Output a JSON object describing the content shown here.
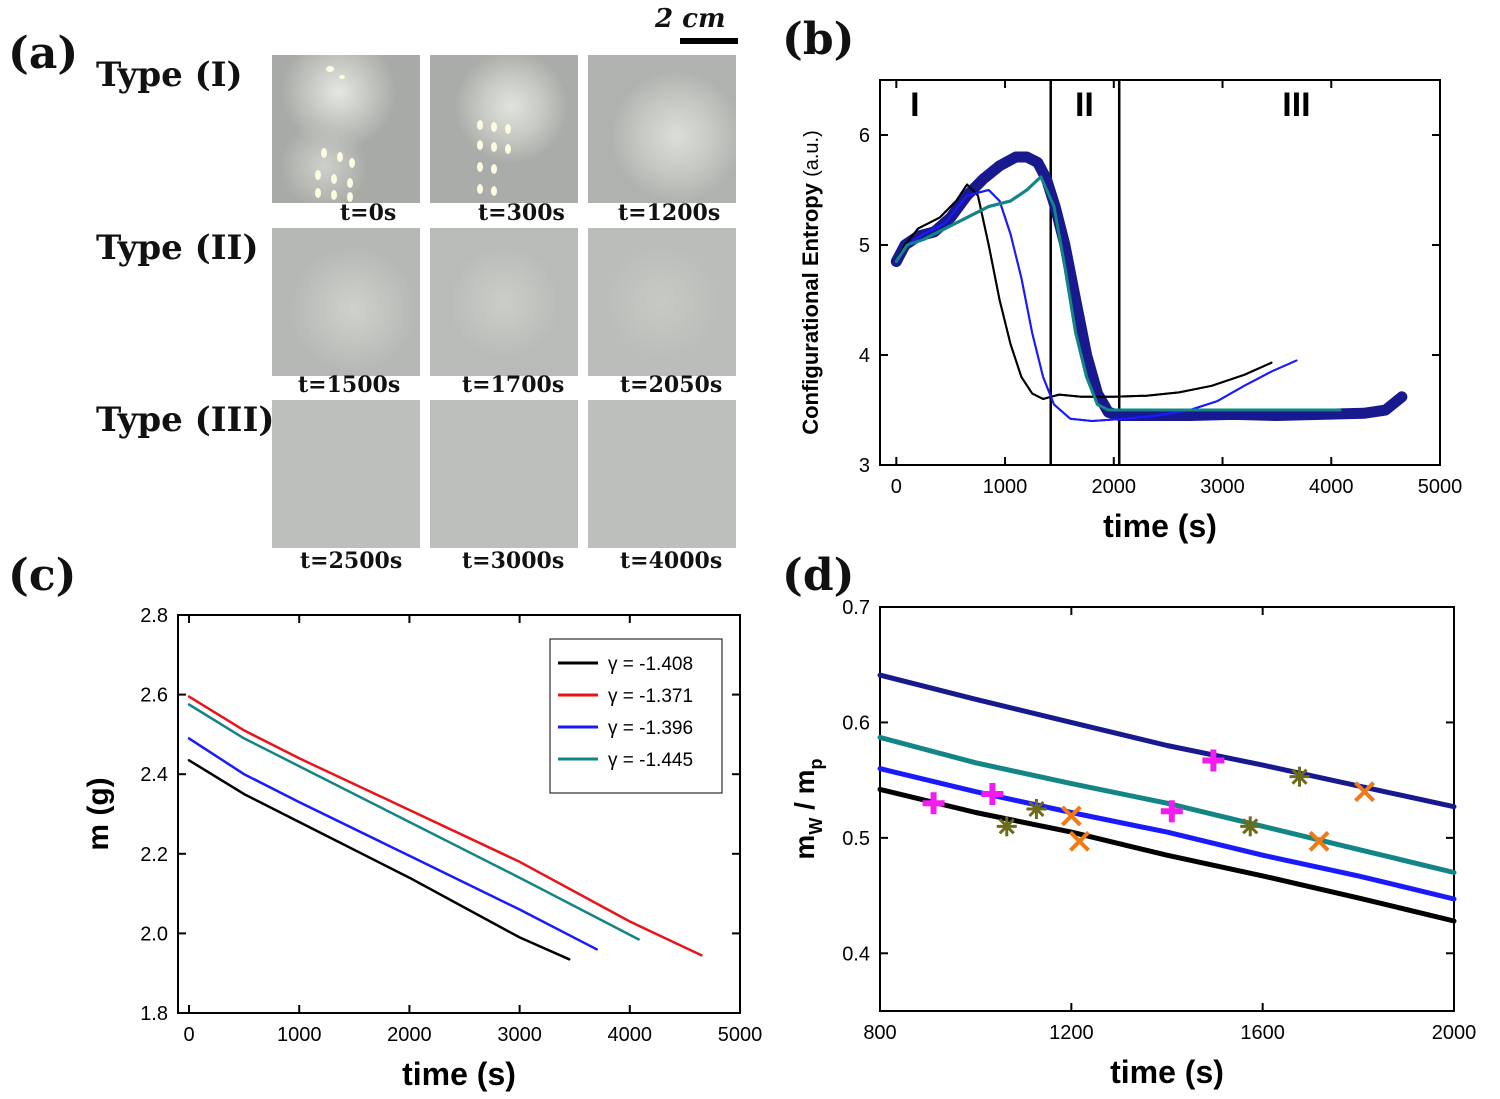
{
  "panels": {
    "a": "(a)",
    "b": "(b)",
    "c": "(c)",
    "d": "(d)"
  },
  "panel_a": {
    "scale_label": "2 cm",
    "rows": [
      {
        "type_label": "Type (I)",
        "captions": [
          "t=0s",
          "t=300s",
          "t=1200s"
        ]
      },
      {
        "type_label": "Type (II)",
        "captions": [
          "t=1500s",
          "t=1700s",
          "t=2050s"
        ]
      },
      {
        "type_label": "Type (III)",
        "captions": [
          "t=2500s",
          "t=3000s",
          "t=4000s"
        ]
      }
    ]
  },
  "colors": {
    "black": "#000000",
    "red": "#e8141a",
    "blue": "#1a1aff",
    "teal": "#138585",
    "navy": "#18188f",
    "magenta": "#f01cf0",
    "olive": "#6b6b1a",
    "orange": "#f07a18"
  },
  "chart_data": [
    {
      "id": "b",
      "type": "line",
      "xlabel": "time (s)",
      "ylabel": "Configurational Entropy",
      "ylabel_unit": "(a.u.)",
      "xlim": [
        -150,
        5000
      ],
      "ylim": [
        3,
        6.5
      ],
      "xticks": [
        0,
        1000,
        2000,
        3000,
        4000,
        5000
      ],
      "yticks": [
        3,
        4,
        5,
        6
      ],
      "vlines": [
        1420,
        2050
      ],
      "regions": [
        "I",
        "II",
        "III"
      ],
      "series": [
        {
          "name": "black",
          "color": "#000000",
          "width": 2,
          "x": [
            0,
            80,
            200,
            400,
            550,
            650,
            750,
            850,
            950,
            1050,
            1150,
            1250,
            1350,
            1420,
            1500,
            1700,
            2000,
            2300,
            2600,
            2900,
            3200,
            3450
          ],
          "y": [
            4.85,
            5.0,
            5.15,
            5.25,
            5.4,
            5.55,
            5.45,
            5.0,
            4.5,
            4.1,
            3.8,
            3.65,
            3.6,
            3.62,
            3.64,
            3.62,
            3.62,
            3.63,
            3.66,
            3.72,
            3.82,
            3.93
          ]
        },
        {
          "name": "blue",
          "color": "#1a1aff",
          "width": 2,
          "x": [
            0,
            100,
            250,
            450,
            650,
            850,
            950,
            1050,
            1150,
            1250,
            1350,
            1450,
            1600,
            1800,
            2100,
            2400,
            2700,
            2950,
            3200,
            3450,
            3680
          ],
          "y": [
            4.85,
            5.0,
            5.1,
            5.2,
            5.45,
            5.5,
            5.4,
            5.1,
            4.7,
            4.2,
            3.8,
            3.55,
            3.42,
            3.4,
            3.42,
            3.45,
            3.5,
            3.58,
            3.72,
            3.85,
            3.95
          ]
        },
        {
          "name": "navy",
          "color": "#18188f",
          "width": 11,
          "x": [
            0,
            80,
            200,
            350,
            500,
            650,
            800,
            950,
            1100,
            1200,
            1300,
            1380,
            1460,
            1550,
            1650,
            1750,
            1850,
            1950,
            2050,
            2300,
            2700,
            3100,
            3500,
            3900,
            4300,
            4500,
            4650
          ],
          "y": [
            4.85,
            5.0,
            5.08,
            5.12,
            5.25,
            5.45,
            5.6,
            5.72,
            5.8,
            5.8,
            5.75,
            5.6,
            5.35,
            5.0,
            4.5,
            4.0,
            3.65,
            3.48,
            3.45,
            3.45,
            3.45,
            3.46,
            3.45,
            3.46,
            3.47,
            3.5,
            3.62
          ]
        },
        {
          "name": "teal",
          "color": "#138585",
          "width": 3,
          "x": [
            0,
            100,
            250,
            450,
            650,
            850,
            1050,
            1200,
            1330,
            1450,
            1550,
            1650,
            1750,
            1850,
            1950,
            2100,
            2500,
            3000,
            3500,
            3800,
            4080
          ],
          "y": [
            4.85,
            5.0,
            5.05,
            5.15,
            5.25,
            5.35,
            5.4,
            5.5,
            5.62,
            5.35,
            4.8,
            4.2,
            3.8,
            3.55,
            3.5,
            3.5,
            3.5,
            3.5,
            3.5,
            3.5,
            3.5
          ]
        }
      ]
    },
    {
      "id": "c",
      "type": "line",
      "xlabel": "time (s)",
      "ylabel": "m (g)",
      "xlim": [
        -100,
        5000
      ],
      "ylim": [
        1.8,
        2.8
      ],
      "xticks": [
        0,
        1000,
        2000,
        3000,
        4000,
        5000
      ],
      "yticks": [
        1.8,
        2.0,
        2.2,
        2.4,
        2.6,
        2.8
      ],
      "ytick_labels": [
        "1.8",
        "2.0",
        "2.2",
        "2.4",
        "2.6",
        "2.8"
      ],
      "legend_position": "top-right",
      "series": [
        {
          "name": "γ = -1.408",
          "color": "#000000",
          "x": [
            0,
            500,
            1000,
            2000,
            3000,
            3450
          ],
          "y": [
            2.435,
            2.35,
            2.28,
            2.14,
            1.99,
            1.935
          ]
        },
        {
          "name": "γ = -1.371",
          "color": "#e8141a",
          "x": [
            0,
            500,
            1000,
            2000,
            3000,
            4000,
            4650
          ],
          "y": [
            2.595,
            2.51,
            2.44,
            2.31,
            2.18,
            2.03,
            1.945
          ]
        },
        {
          "name": "γ = -1.396",
          "color": "#1a1aff",
          "x": [
            0,
            500,
            1000,
            2000,
            3000,
            3700
          ],
          "y": [
            2.49,
            2.4,
            2.33,
            2.195,
            2.06,
            1.96
          ]
        },
        {
          "name": "γ = -1.445",
          "color": "#138585",
          "x": [
            0,
            500,
            1000,
            2000,
            3000,
            4080
          ],
          "y": [
            2.575,
            2.49,
            2.42,
            2.28,
            2.14,
            1.985
          ]
        }
      ]
    },
    {
      "id": "d",
      "type": "line",
      "xlabel": "time (s)",
      "ylabel_main": "m",
      "ylabel_sub1": "W",
      "ylabel_sep": " / m",
      "ylabel_sub2": "p",
      "xlim": [
        800,
        2000
      ],
      "ylim": [
        0.35,
        0.7
      ],
      "xticks": [
        800,
        1200,
        1600,
        2000
      ],
      "yticks": [
        0.4,
        0.5,
        0.6,
        0.7
      ],
      "ytick_labels": [
        "0.4",
        "0.5",
        "0.6",
        "0.7"
      ],
      "series": [
        {
          "name": "navy",
          "color": "#18188f",
          "x": [
            800,
            1000,
            1200,
            1400,
            1600,
            1800,
            2000
          ],
          "y": [
            0.641,
            0.62,
            0.6,
            0.58,
            0.563,
            0.545,
            0.527
          ]
        },
        {
          "name": "teal",
          "color": "#138585",
          "x": [
            800,
            1000,
            1200,
            1400,
            1600,
            1800,
            2000
          ],
          "y": [
            0.587,
            0.565,
            0.547,
            0.53,
            0.51,
            0.49,
            0.47
          ]
        },
        {
          "name": "blue",
          "color": "#1a1aff",
          "x": [
            800,
            1000,
            1200,
            1400,
            1600,
            1800,
            2000
          ],
          "y": [
            0.56,
            0.54,
            0.522,
            0.505,
            0.485,
            0.467,
            0.447
          ]
        },
        {
          "name": "black",
          "color": "#000000",
          "x": [
            800,
            1000,
            1200,
            1400,
            1600,
            1800,
            2000
          ],
          "y": [
            0.542,
            0.522,
            0.505,
            0.485,
            0.467,
            0.448,
            0.428
          ]
        }
      ],
      "markers": [
        {
          "symbol": "plus",
          "color": "#f01cf0",
          "x": 912,
          "y": 0.53
        },
        {
          "symbol": "plus",
          "color": "#f01cf0",
          "x": 1035,
          "y": 0.538
        },
        {
          "symbol": "plus",
          "color": "#f01cf0",
          "x": 1410,
          "y": 0.523
        },
        {
          "symbol": "plus",
          "color": "#f01cf0",
          "x": 1497,
          "y": 0.567
        },
        {
          "symbol": "asterisk",
          "color": "#6b6b1a",
          "x": 1065,
          "y": 0.51
        },
        {
          "symbol": "asterisk",
          "color": "#6b6b1a",
          "x": 1127,
          "y": 0.525
        },
        {
          "symbol": "asterisk",
          "color": "#6b6b1a",
          "x": 1574,
          "y": 0.51
        },
        {
          "symbol": "asterisk",
          "color": "#6b6b1a",
          "x": 1677,
          "y": 0.553
        },
        {
          "symbol": "x",
          "color": "#f07a18",
          "x": 1200,
          "y": 0.519
        },
        {
          "symbol": "x",
          "color": "#f07a18",
          "x": 1217,
          "y": 0.497
        },
        {
          "symbol": "x",
          "color": "#f07a18",
          "x": 1718,
          "y": 0.497
        },
        {
          "symbol": "x",
          "color": "#f07a18",
          "x": 1813,
          "y": 0.54
        }
      ]
    }
  ]
}
